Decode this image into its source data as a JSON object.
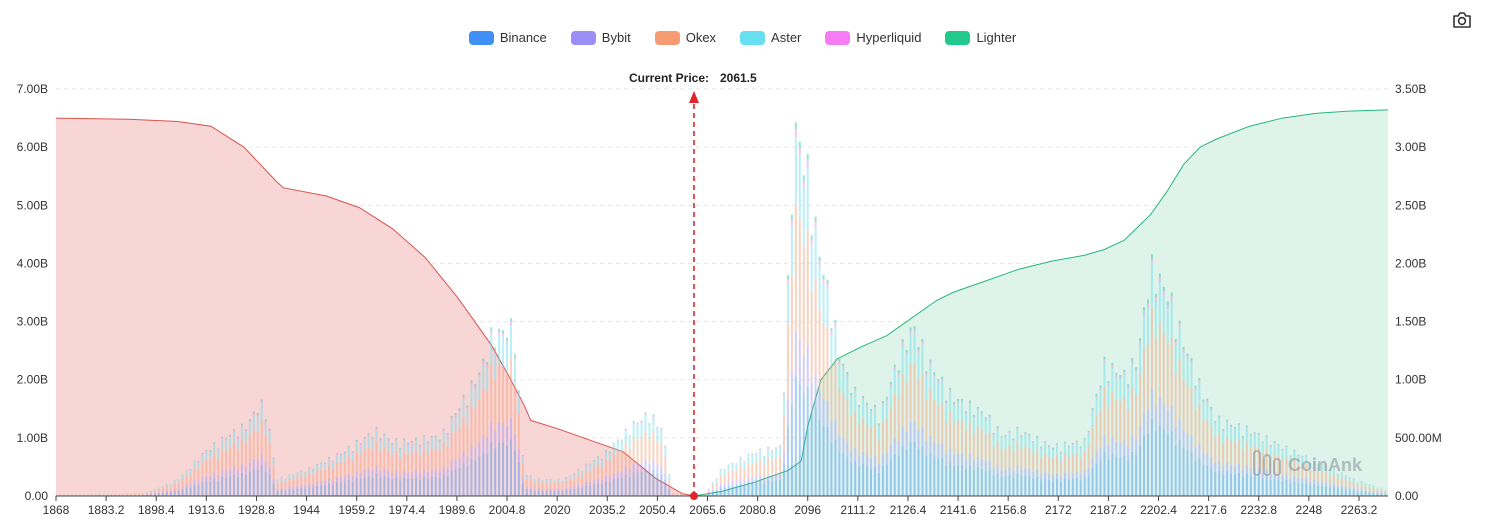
{
  "toolbar": {
    "icon": "camera-icon"
  },
  "colors": {
    "binance": "#3f8ff6",
    "bybit": "#9b8ff7",
    "okex": "#f79b73",
    "aster": "#67dff0",
    "hyperliquid": "#f57cf3",
    "lighter": "#22c98e",
    "short_cum_line": "#d9534f",
    "short_cum_fill": "#f8d4d4",
    "long_cum_line": "#27b67f",
    "long_cum_fill": "#dcf3e9",
    "current_price": "#e0252b"
  },
  "watermark": "CoinAnk",
  "chart_data": {
    "type": "bar",
    "legend": [
      "Binance",
      "Bybit",
      "Okex",
      "Aster",
      "Hyperliquid",
      "Lighter"
    ],
    "current_price_label": "Current Price:",
    "current_price": 2061.5,
    "current_price_text": "2061.5",
    "x_ticks": [
      "1868",
      "1883.2",
      "1898.4",
      "1913.6",
      "1928.8",
      "1944",
      "1959.2",
      "1974.4",
      "1989.6",
      "2004.8",
      "2020",
      "2035.2",
      "2050.4",
      "2065.6",
      "2080.8",
      "2096",
      "2111.2",
      "2126.4",
      "2141.6",
      "2156.8",
      "2172",
      "2187.2",
      "2202.4",
      "2217.6",
      "2232.8",
      "2248",
      "2263.2"
    ],
    "x_range": [
      1868,
      2272
    ],
    "y_left": {
      "ticks": [
        "0.00",
        "1.00B",
        "2.00B",
        "3.00B",
        "4.00B",
        "5.00B",
        "6.00B",
        "7.00B"
      ],
      "range": [
        0,
        7.0
      ]
    },
    "y_right": {
      "ticks": [
        "0.00",
        "500.00M",
        "1.00B",
        "1.50B",
        "2.00B",
        "2.50B",
        "3.00B",
        "3.50B"
      ],
      "range": [
        0,
        3.5
      ]
    },
    "units": "B",
    "grid": "horizontal dashed",
    "legend_position": "top-center",
    "bar_profile_B": {
      "x": [
        1868,
        1895,
        1905,
        1913,
        1920,
        1926,
        1930,
        1932,
        1935,
        1945,
        1955,
        1965,
        1970,
        1975,
        1985,
        1992,
        1997,
        2000,
        2004,
        2007,
        2010,
        2015,
        2022,
        2035,
        2043,
        2048,
        2052,
        2055,
        2065,
        2070,
        2080,
        2088,
        2092,
        2094,
        2096,
        2098,
        2100,
        2103,
        2106,
        2110,
        2118,
        2124,
        2128,
        2133,
        2140,
        2150,
        2155,
        2160,
        2170,
        2180,
        2186,
        2192,
        2196,
        2200,
        2203,
        2206,
        2210,
        2215,
        2220,
        2230,
        2240,
        2255,
        2262,
        2272
      ],
      "y": [
        0.02,
        0.05,
        0.3,
        0.8,
        1.1,
        1.3,
        1.7,
        1.5,
        0.3,
        0.5,
        0.8,
        1.2,
        1.0,
        1.0,
        1.1,
        1.8,
        2.3,
        2.9,
        3.0,
        3.1,
        0.4,
        0.3,
        0.3,
        0.8,
        1.3,
        1.5,
        1.2,
        0.05,
        0.05,
        0.5,
        0.8,
        0.9,
        6.7,
        6.3,
        5.9,
        5.0,
        4.3,
        3.5,
        2.5,
        1.9,
        1.5,
        2.6,
        3.1,
        2.4,
        1.8,
        1.5,
        1.1,
        1.2,
        0.9,
        1.0,
        2.4,
        2.2,
        2.5,
        4.2,
        3.9,
        3.6,
        2.8,
        2.0,
        1.4,
        1.2,
        0.9,
        0.5,
        0.3,
        0.1
      ],
      "share": {
        "Binance": 0.32,
        "Bybit": 0.12,
        "Okex": 0.34,
        "Aster": 0.18,
        "Hyperliquid": 0.02,
        "Lighter": 0.02
      }
    },
    "short_cumulative_B": {
      "x": [
        1868,
        1890,
        1905,
        1915,
        1925,
        1935,
        1937,
        1950,
        1960,
        1970,
        1980,
        1990,
        2000,
        2005,
        2010,
        2012,
        2020,
        2030,
        2040,
        2050,
        2058,
        2061.5
      ],
      "y": [
        3.25,
        3.24,
        3.22,
        3.18,
        3.0,
        2.7,
        2.65,
        2.58,
        2.48,
        2.3,
        2.05,
        1.7,
        1.3,
        1.05,
        0.78,
        0.65,
        0.58,
        0.48,
        0.38,
        0.15,
        0.02,
        0.0
      ]
    },
    "long_cumulative_B": {
      "x": [
        2061.5,
        2070,
        2080,
        2090,
        2094,
        2096,
        2100,
        2105,
        2112,
        2120,
        2126,
        2135,
        2140,
        2150,
        2160,
        2170,
        2180,
        2186,
        2192,
        2200,
        2205,
        2210,
        2215,
        2220,
        2230,
        2240,
        2250,
        2260,
        2272
      ],
      "y": [
        0.0,
        0.04,
        0.12,
        0.22,
        0.3,
        0.6,
        1.0,
        1.18,
        1.28,
        1.38,
        1.5,
        1.68,
        1.75,
        1.85,
        1.95,
        2.02,
        2.07,
        2.12,
        2.2,
        2.42,
        2.62,
        2.85,
        3.0,
        3.07,
        3.18,
        3.25,
        3.29,
        3.31,
        3.32
      ]
    }
  }
}
